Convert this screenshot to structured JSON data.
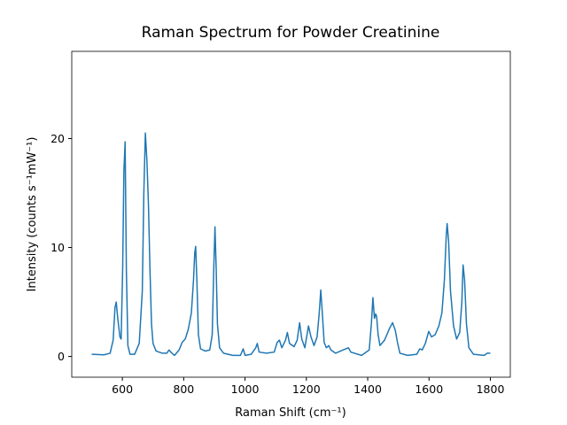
{
  "chart_data": {
    "type": "line",
    "title": "Raman Spectrum for Powder Creatinine",
    "xlabel": "Raman Shift (cm⁻¹)",
    "ylabel": "Intensity (counts s⁻¹mW⁻¹)",
    "color": "#1f77b4",
    "xlim": [
      435,
      1865
    ],
    "ylim": [
      -1.9,
      28
    ],
    "xticks": [
      600,
      800,
      1000,
      1200,
      1400,
      1600,
      1800
    ],
    "yticks": [
      0,
      10,
      20
    ],
    "x": [
      500,
      540,
      560,
      570,
      576,
      580,
      585,
      592,
      596,
      601,
      605,
      609,
      613,
      618,
      625,
      640,
      655,
      665,
      670,
      675,
      680,
      685,
      690,
      695,
      700,
      710,
      730,
      745,
      752,
      758,
      770,
      785,
      795,
      805,
      815,
      825,
      832,
      836,
      839,
      843,
      848,
      855,
      870,
      885,
      893,
      898,
      902,
      906,
      910,
      917,
      930,
      960,
      985,
      994,
      1000,
      1020,
      1035,
      1040,
      1046,
      1070,
      1095,
      1105,
      1112,
      1120,
      1132,
      1138,
      1145,
      1160,
      1170,
      1178,
      1185,
      1195,
      1207,
      1215,
      1225,
      1235,
      1242,
      1247,
      1252,
      1258,
      1265,
      1273,
      1280,
      1295,
      1320,
      1337,
      1345,
      1380,
      1405,
      1412,
      1417,
      1422,
      1426,
      1429,
      1434,
      1440,
      1455,
      1470,
      1481,
      1490,
      1497,
      1505,
      1530,
      1560,
      1570,
      1578,
      1588,
      1599,
      1608,
      1620,
      1632,
      1642,
      1650,
      1656,
      1659,
      1664,
      1670,
      1680,
      1690,
      1700,
      1707,
      1711,
      1716,
      1722,
      1730,
      1745,
      1780,
      1790,
      1800
    ],
    "values": [
      0.2,
      0.15,
      0.3,
      1.5,
      4.5,
      5.0,
      3.5,
      1.8,
      1.6,
      8,
      17,
      19.7,
      8,
      1,
      0.2,
      0.2,
      1.2,
      6,
      15,
      20.5,
      18,
      14,
      8,
      3,
      1.2,
      0.5,
      0.3,
      0.3,
      0.6,
      0.4,
      0.1,
      0.6,
      1.3,
      1.6,
      2.5,
      4,
      7,
      9.5,
      10.1,
      7,
      2,
      0.7,
      0.5,
      0.6,
      2,
      8,
      11.9,
      8,
      3,
      0.8,
      0.3,
      0.1,
      0.1,
      0.7,
      0.1,
      0.2,
      0.8,
      1.2,
      0.4,
      0.3,
      0.4,
      1.3,
      1.5,
      0.8,
      1.5,
      2.2,
      1.2,
      0.9,
      1.5,
      3.1,
      1.6,
      0.8,
      2.8,
      1.8,
      1.0,
      1.8,
      4,
      6.1,
      4,
      1.3,
      0.8,
      1.0,
      0.6,
      0.3,
      0.6,
      0.8,
      0.4,
      0.1,
      0.6,
      3,
      5.4,
      3.5,
      3.9,
      3.7,
      2,
      1.0,
      1.5,
      2.5,
      3.1,
      2.4,
      1.3,
      0.3,
      0.1,
      0.2,
      0.7,
      0.6,
      1.2,
      2.3,
      1.8,
      2.0,
      2.8,
      4,
      7,
      11,
      12.2,
      10.5,
      6,
      2.8,
      1.6,
      2.2,
      5,
      8.4,
      7,
      3,
      0.8,
      0.2,
      0.1,
      0.3,
      0.3
    ]
  }
}
